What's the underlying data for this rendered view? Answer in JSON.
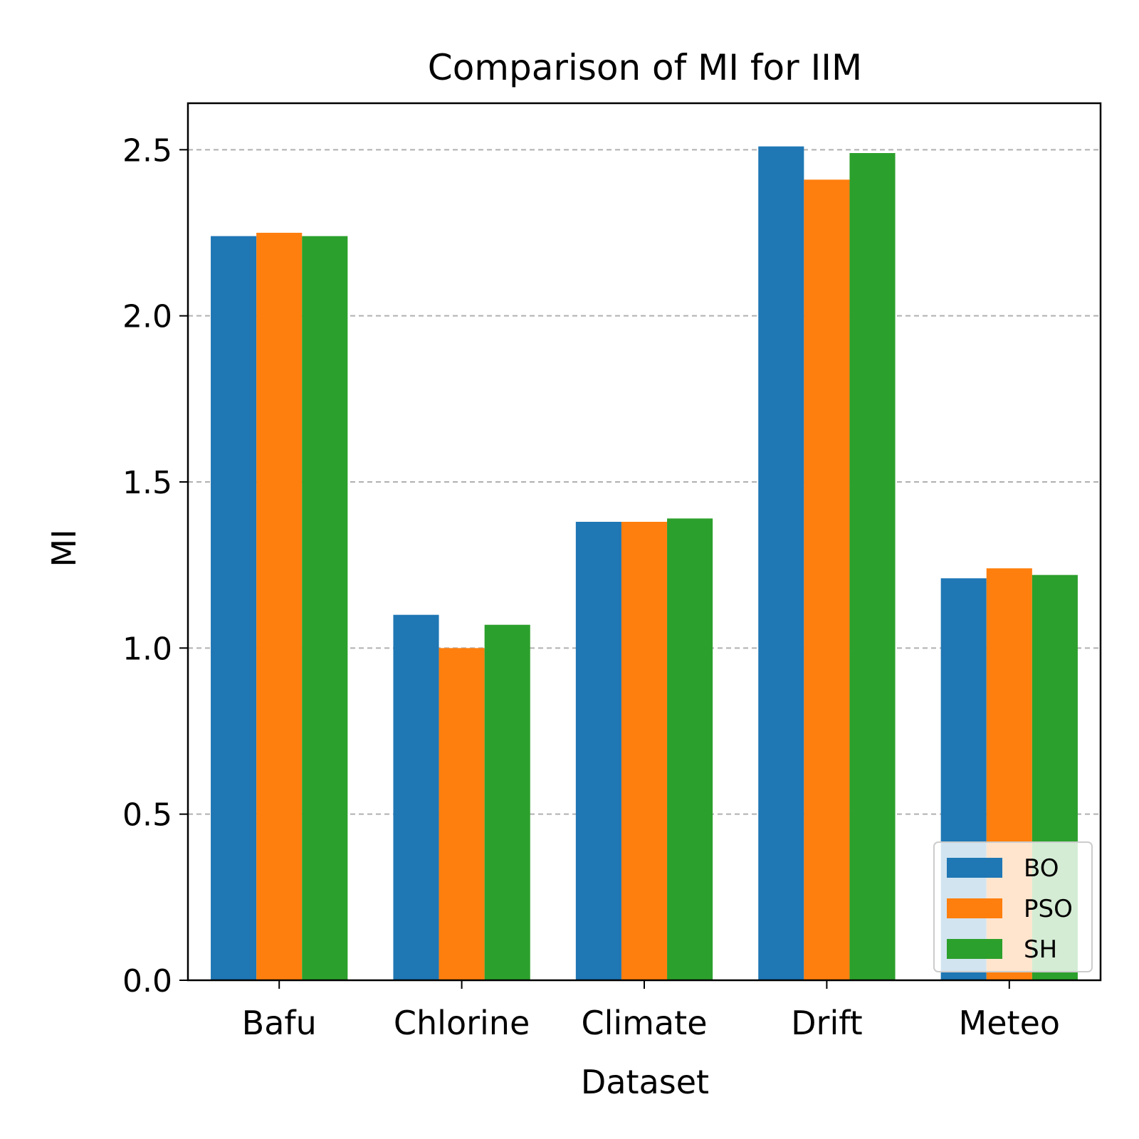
{
  "chart_data": {
    "type": "bar",
    "title": "Comparison of MI for IIM",
    "xlabel": "Dataset",
    "ylabel": "MI",
    "categories": [
      "Bafu",
      "Chlorine",
      "Climate",
      "Drift",
      "Meteo"
    ],
    "series": [
      {
        "name": "BO",
        "color": "#1f77b4",
        "values": [
          2.24,
          1.1,
          1.38,
          2.51,
          1.21
        ]
      },
      {
        "name": "PSO",
        "color": "#ff7f0e",
        "values": [
          2.25,
          1.0,
          1.38,
          2.41,
          1.24
        ]
      },
      {
        "name": "SH",
        "color": "#2ca02c",
        "values": [
          2.24,
          1.07,
          1.39,
          2.49,
          1.22
        ]
      }
    ],
    "ylim": [
      0,
      2.64
    ],
    "yticks": [
      "0.0",
      "0.5",
      "1.0",
      "1.5",
      "2.0",
      "2.5"
    ],
    "grid": {
      "axis": "y",
      "style": "dashed",
      "color": "#b0b0b0"
    },
    "legend": {
      "position": "lower right"
    }
  }
}
